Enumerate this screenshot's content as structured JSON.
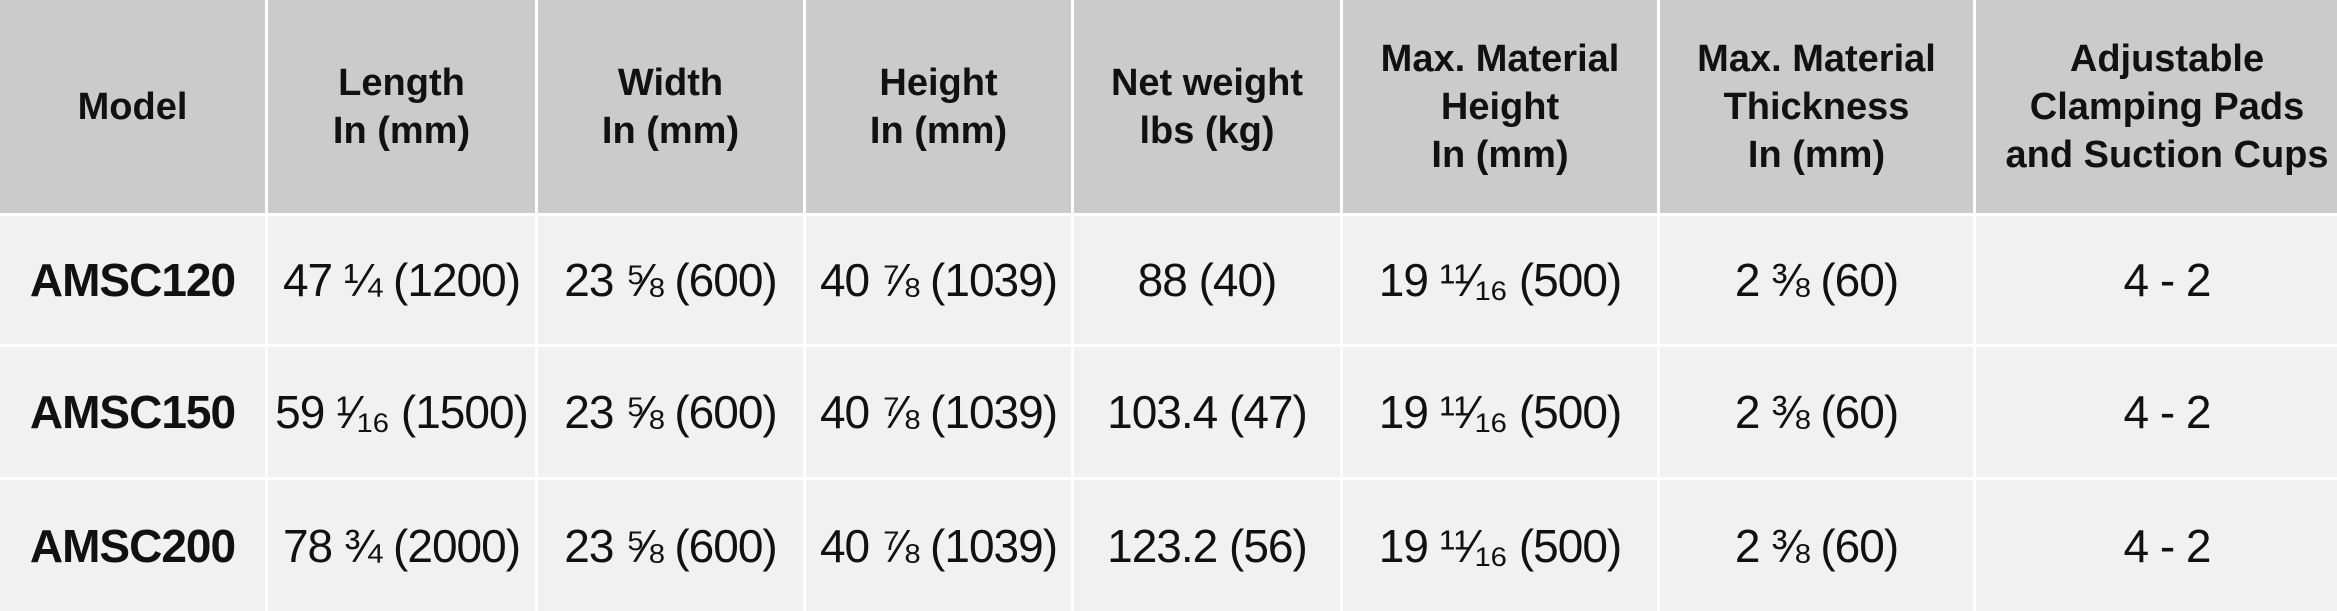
{
  "table": {
    "header": [
      "Model",
      "Length\nIn (mm)",
      "Width\nIn (mm)",
      "Height\nIn (mm)",
      "Net weight\nlbs (kg)",
      "Max. Material\nHeight\nIn (mm)",
      "Max. Material\nThickness\nIn (mm)",
      "Adjustable\nClamping Pads\nand Suction Cups"
    ],
    "rows": [
      [
        "AMSC120",
        "47 ¼ (1200)",
        "23 ⅝ (600)",
        "40 ⅞ (1039)",
        "88 (40)",
        "19 ¹¹⁄₁₆ (500)",
        "2 ⅜ (60)",
        "4 - 2"
      ],
      [
        "AMSC150",
        "59 ¹⁄₁₆ (1500)",
        "23 ⅝ (600)",
        "40 ⅞ (1039)",
        "103.4 (47)",
        "19 ¹¹⁄₁₆ (500)",
        "2 ⅜ (60)",
        "4 - 2"
      ],
      [
        "AMSC200",
        "78 ¾ (2000)",
        "23 ⅝ (600)",
        "40 ⅞ (1039)",
        "123.2 (56)",
        "19 ¹¹⁄₁₆ (500)",
        "2 ⅜ (60)",
        "4 - 2"
      ]
    ]
  }
}
